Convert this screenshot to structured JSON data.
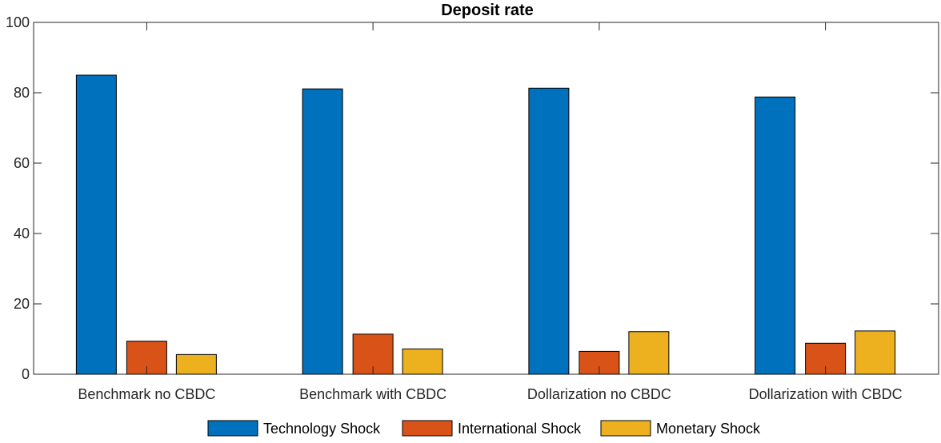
{
  "chart_data": {
    "type": "bar",
    "title": "Deposit rate",
    "xlabel": "",
    "ylabel": "",
    "ylim": [
      0,
      100
    ],
    "yticks": [
      0,
      20,
      40,
      60,
      80,
      100
    ],
    "categories": [
      "Benchmark no CBDC",
      "Benchmark with CBDC",
      "Dollarization no CBDC",
      "Dollarization with CBDC"
    ],
    "series": [
      {
        "name": "Technology Shock",
        "color": "#0072BD",
        "values": [
          85.0,
          81.1,
          81.3,
          78.8
        ]
      },
      {
        "name": "International Shock",
        "color": "#D95319",
        "values": [
          9.4,
          11.4,
          6.5,
          8.8
        ]
      },
      {
        "name": "Monetary Shock",
        "color": "#EDB120",
        "values": [
          5.6,
          7.2,
          12.1,
          12.3
        ]
      }
    ],
    "grid": false,
    "legend_position": "bottom"
  }
}
